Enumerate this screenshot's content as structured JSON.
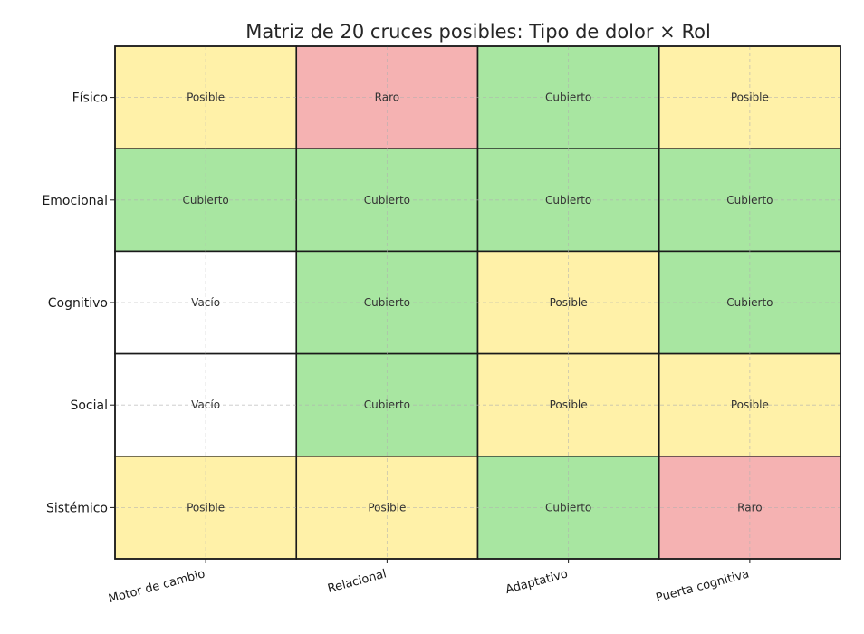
{
  "chart_data": {
    "type": "heatmap",
    "title": "Matriz de 20 cruces posibles: Tipo de dolor × Rol",
    "rows": [
      "Físico",
      "Emocional",
      "Cognitivo",
      "Social",
      "Sistémico"
    ],
    "columns": [
      "Motor de cambio",
      "Relacional",
      "Adaptativo",
      "Puerta cognitiva"
    ],
    "cells": [
      [
        "Posible",
        "Raro",
        "Cubierto",
        "Posible"
      ],
      [
        "Cubierto",
        "Cubierto",
        "Cubierto",
        "Cubierto"
      ],
      [
        "Vacío",
        "Cubierto",
        "Posible",
        "Cubierto"
      ],
      [
        "Vacío",
        "Cubierto",
        "Posible",
        "Posible"
      ],
      [
        "Posible",
        "Posible",
        "Cubierto",
        "Raro"
      ]
    ],
    "category_colors": {
      "Cubierto": "#a8e6a1",
      "Posible": "#fff1a8",
      "Raro": "#f5b2b2",
      "Vacío": "#ffffff"
    },
    "grid": true,
    "legend": "none"
  }
}
